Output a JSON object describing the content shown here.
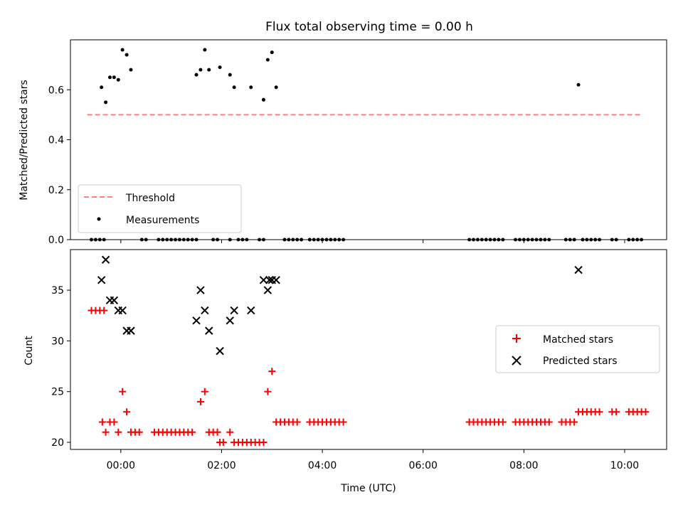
{
  "title": "Flux total observing time = 0.00 h",
  "colors": {
    "threshold": "#ff7f7f",
    "measurements": "#000000",
    "matched": "#ff0000",
    "predicted": "#000000"
  },
  "chart_data": [
    {
      "type": "scatter",
      "panel": "top",
      "xlabel": "",
      "ylabel": "Matched/Predicted stars",
      "xlim": [
        "2023-01-01T23:00",
        "2023-01-02T10:50"
      ],
      "ylim": [
        0,
        0.8
      ],
      "yticks": [
        "0.0",
        "0.2",
        "0.4",
        "0.6"
      ],
      "grid": false,
      "legend_position": "lower-left",
      "threshold": {
        "name": "Threshold",
        "value": 0.5,
        "x_range": [
          "2023-01-01T23:20",
          "2023-01-02T10:20"
        ],
        "style": "dashed"
      },
      "series": [
        {
          "name": "Measurements",
          "marker": "dot",
          "points": [
            {
              "x": "2023-01-01T23:37",
              "y": 0.61
            },
            {
              "x": "2023-01-01T23:42",
              "y": 0.55
            },
            {
              "x": "2023-01-01T23:47",
              "y": 0.65
            },
            {
              "x": "2023-01-01T23:52",
              "y": 0.65
            },
            {
              "x": "2023-01-01T23:57",
              "y": 0.64
            },
            {
              "x": "2023-01-02T00:02",
              "y": 0.76
            },
            {
              "x": "2023-01-02T00:07",
              "y": 0.74
            },
            {
              "x": "2023-01-02T00:12",
              "y": 0.68
            },
            {
              "x": "2023-01-02T01:30",
              "y": 0.66
            },
            {
              "x": "2023-01-02T01:35",
              "y": 0.68
            },
            {
              "x": "2023-01-02T01:40",
              "y": 0.76
            },
            {
              "x": "2023-01-02T01:45",
              "y": 0.68
            },
            {
              "x": "2023-01-02T01:58",
              "y": 0.69
            },
            {
              "x": "2023-01-02T02:10",
              "y": 0.66
            },
            {
              "x": "2023-01-02T02:15",
              "y": 0.61
            },
            {
              "x": "2023-01-02T02:35",
              "y": 0.61
            },
            {
              "x": "2023-01-02T02:50",
              "y": 0.56
            },
            {
              "x": "2023-01-02T02:55",
              "y": 0.72
            },
            {
              "x": "2023-01-02T03:00",
              "y": 0.75
            },
            {
              "x": "2023-01-02T03:05",
              "y": 0.61
            },
            {
              "x": "2023-01-02T09:05",
              "y": 0.62
            }
          ],
          "zero_points": [
            "2023-01-01T23:25",
            "2023-01-01T23:30",
            "2023-01-01T23:35",
            "2023-01-01T23:40",
            "2023-01-02T00:25",
            "2023-01-02T00:30",
            "2023-01-02T00:45",
            "2023-01-02T00:50",
            "2023-01-02T00:55",
            "2023-01-02T01:00",
            "2023-01-02T01:05",
            "2023-01-02T01:10",
            "2023-01-02T01:15",
            "2023-01-02T01:20",
            "2023-01-02T01:25",
            "2023-01-02T01:30",
            "2023-01-02T01:50",
            "2023-01-02T01:55",
            "2023-01-02T02:10",
            "2023-01-02T02:20",
            "2023-01-02T02:25",
            "2023-01-02T02:30",
            "2023-01-02T02:45",
            "2023-01-02T02:50",
            "2023-01-02T03:15",
            "2023-01-02T03:20",
            "2023-01-02T03:25",
            "2023-01-02T03:30",
            "2023-01-02T03:35",
            "2023-01-02T03:45",
            "2023-01-02T03:50",
            "2023-01-02T03:55",
            "2023-01-02T04:00",
            "2023-01-02T04:05",
            "2023-01-02T04:10",
            "2023-01-02T04:15",
            "2023-01-02T04:20",
            "2023-01-02T04:25",
            "2023-01-02T06:55",
            "2023-01-02T07:00",
            "2023-01-02T07:05",
            "2023-01-02T07:10",
            "2023-01-02T07:15",
            "2023-01-02T07:20",
            "2023-01-02T07:25",
            "2023-01-02T07:30",
            "2023-01-02T07:35",
            "2023-01-02T07:50",
            "2023-01-02T07:55",
            "2023-01-02T08:00",
            "2023-01-02T08:05",
            "2023-01-02T08:10",
            "2023-01-02T08:15",
            "2023-01-02T08:20",
            "2023-01-02T08:25",
            "2023-01-02T08:30",
            "2023-01-02T08:50",
            "2023-01-02T08:55",
            "2023-01-02T09:00",
            "2023-01-02T09:10",
            "2023-01-02T09:15",
            "2023-01-02T09:20",
            "2023-01-02T09:25",
            "2023-01-02T09:30",
            "2023-01-02T09:45",
            "2023-01-02T09:50",
            "2023-01-02T10:05",
            "2023-01-02T10:10",
            "2023-01-02T10:15",
            "2023-01-02T10:20"
          ]
        }
      ]
    },
    {
      "type": "scatter",
      "panel": "bottom",
      "xlabel": "Time (UTC)",
      "ylabel": "Count",
      "xlim": [
        "2023-01-01T23:00",
        "2023-01-02T10:50"
      ],
      "ylim": [
        19.3,
        39.0
      ],
      "xticks": [
        "00:00",
        "02:00",
        "04:00",
        "06:00",
        "08:00",
        "10:00"
      ],
      "yticks": [
        "20",
        "25",
        "30",
        "35"
      ],
      "grid": false,
      "legend_position": "center-right",
      "series": [
        {
          "name": "Matched stars",
          "marker": "plus",
          "points": [
            {
              "x": "2023-01-01T23:25",
              "y": 33
            },
            {
              "x": "2023-01-01T23:30",
              "y": 33
            },
            {
              "x": "2023-01-01T23:35",
              "y": 33
            },
            {
              "x": "2023-01-01T23:40",
              "y": 33
            },
            {
              "x": "2023-01-01T23:38",
              "y": 22
            },
            {
              "x": "2023-01-01T23:42",
              "y": 21
            },
            {
              "x": "2023-01-01T23:47",
              "y": 22
            },
            {
              "x": "2023-01-01T23:52",
              "y": 22
            },
            {
              "x": "2023-01-01T23:57",
              "y": 21
            },
            {
              "x": "2023-01-02T00:02",
              "y": 25
            },
            {
              "x": "2023-01-02T00:07",
              "y": 23
            },
            {
              "x": "2023-01-02T00:12",
              "y": 21
            },
            {
              "x": "2023-01-02T00:17",
              "y": 21
            },
            {
              "x": "2023-01-02T00:22",
              "y": 21
            },
            {
              "x": "2023-01-02T00:40",
              "y": 21
            },
            {
              "x": "2023-01-02T00:45",
              "y": 21
            },
            {
              "x": "2023-01-02T00:50",
              "y": 21
            },
            {
              "x": "2023-01-02T00:55",
              "y": 21
            },
            {
              "x": "2023-01-02T01:00",
              "y": 21
            },
            {
              "x": "2023-01-02T01:05",
              "y": 21
            },
            {
              "x": "2023-01-02T01:10",
              "y": 21
            },
            {
              "x": "2023-01-02T01:15",
              "y": 21
            },
            {
              "x": "2023-01-02T01:20",
              "y": 21
            },
            {
              "x": "2023-01-02T01:25",
              "y": 21
            },
            {
              "x": "2023-01-02T01:35",
              "y": 24
            },
            {
              "x": "2023-01-02T01:40",
              "y": 25
            },
            {
              "x": "2023-01-02T01:45",
              "y": 21
            },
            {
              "x": "2023-01-02T01:50",
              "y": 21
            },
            {
              "x": "2023-01-02T01:55",
              "y": 21
            },
            {
              "x": "2023-01-02T01:58",
              "y": 20
            },
            {
              "x": "2023-01-02T02:02",
              "y": 20
            },
            {
              "x": "2023-01-02T02:10",
              "y": 21
            },
            {
              "x": "2023-01-02T02:15",
              "y": 20
            },
            {
              "x": "2023-01-02T02:20",
              "y": 20
            },
            {
              "x": "2023-01-02T02:25",
              "y": 20
            },
            {
              "x": "2023-01-02T02:30",
              "y": 20
            },
            {
              "x": "2023-01-02T02:35",
              "y": 20
            },
            {
              "x": "2023-01-02T02:40",
              "y": 20
            },
            {
              "x": "2023-01-02T02:45",
              "y": 20
            },
            {
              "x": "2023-01-02T02:50",
              "y": 20
            },
            {
              "x": "2023-01-02T02:55",
              "y": 25
            },
            {
              "x": "2023-01-02T03:00",
              "y": 27
            },
            {
              "x": "2023-01-02T03:05",
              "y": 22
            },
            {
              "x": "2023-01-02T03:10",
              "y": 22
            },
            {
              "x": "2023-01-02T03:15",
              "y": 22
            },
            {
              "x": "2023-01-02T03:20",
              "y": 22
            },
            {
              "x": "2023-01-02T03:25",
              "y": 22
            },
            {
              "x": "2023-01-02T03:30",
              "y": 22
            },
            {
              "x": "2023-01-02T03:45",
              "y": 22
            },
            {
              "x": "2023-01-02T03:50",
              "y": 22
            },
            {
              "x": "2023-01-02T03:55",
              "y": 22
            },
            {
              "x": "2023-01-02T04:00",
              "y": 22
            },
            {
              "x": "2023-01-02T04:05",
              "y": 22
            },
            {
              "x": "2023-01-02T04:10",
              "y": 22
            },
            {
              "x": "2023-01-02T04:15",
              "y": 22
            },
            {
              "x": "2023-01-02T04:20",
              "y": 22
            },
            {
              "x": "2023-01-02T04:25",
              "y": 22
            },
            {
              "x": "2023-01-02T06:55",
              "y": 22
            },
            {
              "x": "2023-01-02T07:00",
              "y": 22
            },
            {
              "x": "2023-01-02T07:05",
              "y": 22
            },
            {
              "x": "2023-01-02T07:10",
              "y": 22
            },
            {
              "x": "2023-01-02T07:15",
              "y": 22
            },
            {
              "x": "2023-01-02T07:20",
              "y": 22
            },
            {
              "x": "2023-01-02T07:25",
              "y": 22
            },
            {
              "x": "2023-01-02T07:30",
              "y": 22
            },
            {
              "x": "2023-01-02T07:35",
              "y": 22
            },
            {
              "x": "2023-01-02T07:50",
              "y": 22
            },
            {
              "x": "2023-01-02T07:55",
              "y": 22
            },
            {
              "x": "2023-01-02T08:00",
              "y": 22
            },
            {
              "x": "2023-01-02T08:05",
              "y": 22
            },
            {
              "x": "2023-01-02T08:10",
              "y": 22
            },
            {
              "x": "2023-01-02T08:15",
              "y": 22
            },
            {
              "x": "2023-01-02T08:20",
              "y": 22
            },
            {
              "x": "2023-01-02T08:25",
              "y": 22
            },
            {
              "x": "2023-01-02T08:30",
              "y": 22
            },
            {
              "x": "2023-01-02T08:45",
              "y": 22
            },
            {
              "x": "2023-01-02T08:50",
              "y": 22
            },
            {
              "x": "2023-01-02T08:55",
              "y": 22
            },
            {
              "x": "2023-01-02T09:00",
              "y": 22
            },
            {
              "x": "2023-01-02T09:05",
              "y": 23
            },
            {
              "x": "2023-01-02T09:10",
              "y": 23
            },
            {
              "x": "2023-01-02T09:15",
              "y": 23
            },
            {
              "x": "2023-01-02T09:20",
              "y": 23
            },
            {
              "x": "2023-01-02T09:25",
              "y": 23
            },
            {
              "x": "2023-01-02T09:30",
              "y": 23
            },
            {
              "x": "2023-01-02T09:45",
              "y": 23
            },
            {
              "x": "2023-01-02T09:50",
              "y": 23
            },
            {
              "x": "2023-01-02T10:05",
              "y": 23
            },
            {
              "x": "2023-01-02T10:10",
              "y": 23
            },
            {
              "x": "2023-01-02T10:15",
              "y": 23
            },
            {
              "x": "2023-01-02T10:20",
              "y": 23
            },
            {
              "x": "2023-01-02T10:25",
              "y": 23
            }
          ]
        },
        {
          "name": "Predicted stars",
          "marker": "x",
          "points": [
            {
              "x": "2023-01-01T23:37",
              "y": 36
            },
            {
              "x": "2023-01-01T23:42",
              "y": 38
            },
            {
              "x": "2023-01-01T23:47",
              "y": 34
            },
            {
              "x": "2023-01-01T23:52",
              "y": 34
            },
            {
              "x": "2023-01-01T23:57",
              "y": 33
            },
            {
              "x": "2023-01-02T00:02",
              "y": 33
            },
            {
              "x": "2023-01-02T00:07",
              "y": 31
            },
            {
              "x": "2023-01-02T00:12",
              "y": 31
            },
            {
              "x": "2023-01-02T01:30",
              "y": 32
            },
            {
              "x": "2023-01-02T01:35",
              "y": 35
            },
            {
              "x": "2023-01-02T01:40",
              "y": 33
            },
            {
              "x": "2023-01-02T01:45",
              "y": 31
            },
            {
              "x": "2023-01-02T01:58",
              "y": 29
            },
            {
              "x": "2023-01-02T02:10",
              "y": 32
            },
            {
              "x": "2023-01-02T02:15",
              "y": 33
            },
            {
              "x": "2023-01-02T02:35",
              "y": 33
            },
            {
              "x": "2023-01-02T02:50",
              "y": 36
            },
            {
              "x": "2023-01-02T02:55",
              "y": 35
            },
            {
              "x": "2023-01-02T02:57",
              "y": 36
            },
            {
              "x": "2023-01-02T03:00",
              "y": 36
            },
            {
              "x": "2023-01-02T03:05",
              "y": 36
            },
            {
              "x": "2023-01-02T09:05",
              "y": 37
            }
          ]
        }
      ]
    }
  ]
}
